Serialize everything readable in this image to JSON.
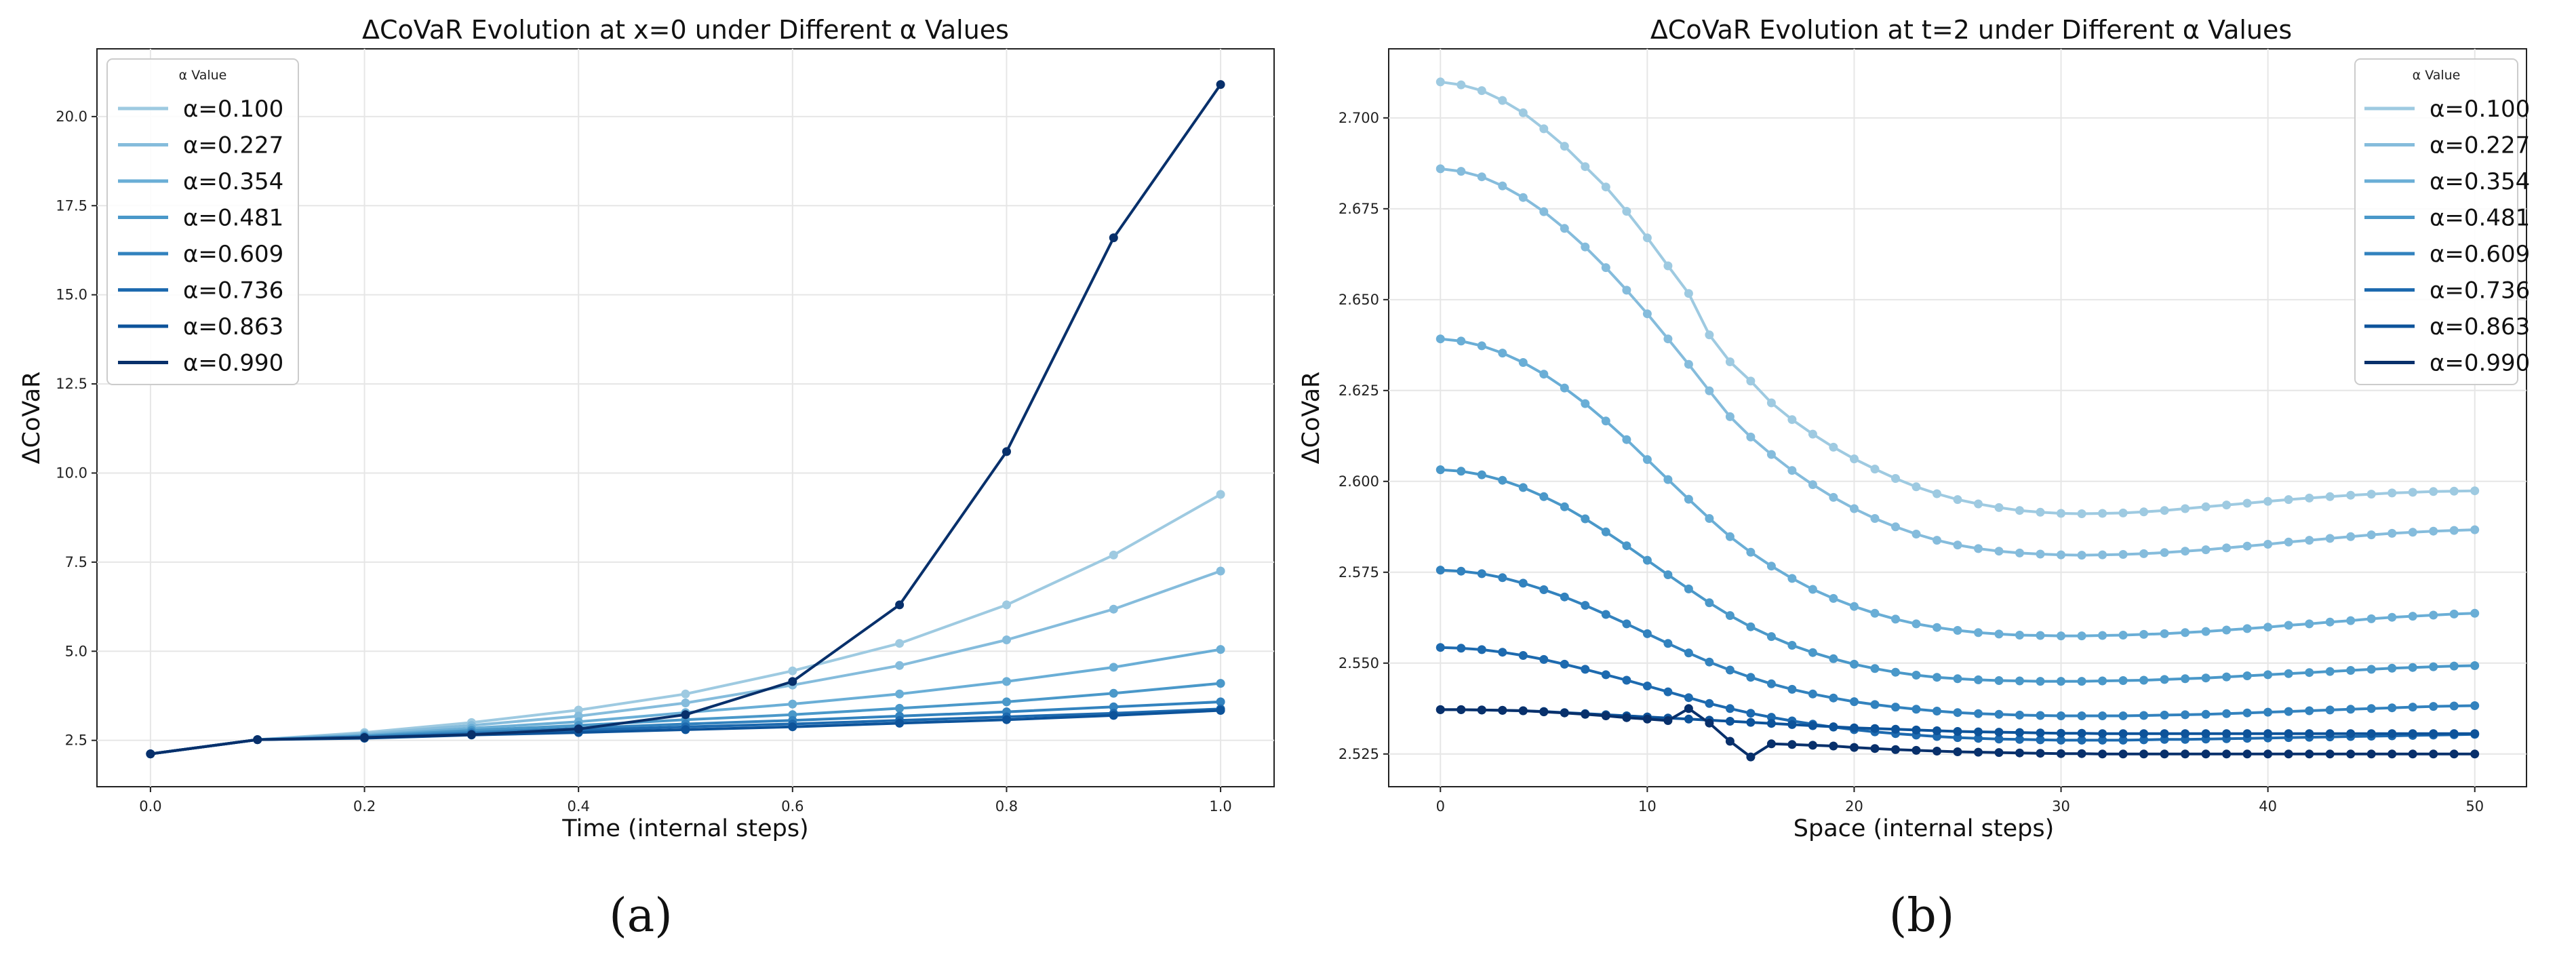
{
  "chart_data": [
    {
      "type": "line",
      "panel_label": "(a)",
      "title": "ΔCoVaR Evolution at x=0 under Different α Values",
      "xlabel": "Time (internal steps)",
      "ylabel": "ΔCoVaR",
      "xlim": [
        -0.05,
        1.05
      ],
      "ylim": [
        1.2,
        21.9
      ],
      "xticks": [
        "0.0",
        "0.2",
        "0.4",
        "0.6",
        "0.8",
        "1.0"
      ],
      "yticks": [
        "2.5",
        "5.0",
        "7.5",
        "10.0",
        "12.5",
        "15.0",
        "17.5",
        "20.0"
      ],
      "grid": true,
      "legend": {
        "title": "α Value",
        "position": "upper-left"
      },
      "x": [
        0.0,
        0.1,
        0.2,
        0.3,
        0.4,
        0.5,
        0.6,
        0.7,
        0.8,
        0.9,
        1.0
      ],
      "series": [
        {
          "name": "α=0.100",
          "color": "#9ecae1",
          "values": [
            2.12,
            2.52,
            2.72,
            3.0,
            3.35,
            3.8,
            4.45,
            5.22,
            6.3,
            7.7,
            9.4
          ]
        },
        {
          "name": "α=0.227",
          "color": "#85bcdc",
          "values": [
            2.12,
            2.52,
            2.68,
            2.92,
            3.18,
            3.55,
            4.05,
            4.6,
            5.32,
            6.18,
            7.25
          ]
        },
        {
          "name": "α=0.354",
          "color": "#6aaed6",
          "values": [
            2.12,
            2.52,
            2.64,
            2.84,
            3.02,
            3.28,
            3.52,
            3.8,
            4.15,
            4.55,
            5.05
          ]
        },
        {
          "name": "α=0.481",
          "color": "#4a98c9",
          "values": [
            2.12,
            2.52,
            2.62,
            2.78,
            2.92,
            3.08,
            3.22,
            3.4,
            3.58,
            3.82,
            4.1
          ]
        },
        {
          "name": "α=0.609",
          "color": "#3282be",
          "values": [
            2.12,
            2.52,
            2.6,
            2.72,
            2.84,
            2.96,
            3.06,
            3.18,
            3.3,
            3.44,
            3.58
          ]
        },
        {
          "name": "α=0.736",
          "color": "#1d6aaf",
          "values": [
            2.12,
            2.52,
            2.58,
            2.68,
            2.78,
            2.88,
            2.96,
            3.06,
            3.16,
            3.26,
            3.38
          ]
        },
        {
          "name": "α=0.863",
          "color": "#0d539a",
          "values": [
            2.12,
            2.52,
            2.56,
            2.65,
            2.72,
            2.8,
            2.88,
            2.98,
            3.08,
            3.2,
            3.34
          ]
        },
        {
          "name": "α=0.990",
          "color": "#08306b",
          "values": [
            2.12,
            2.52,
            2.58,
            2.66,
            2.82,
            3.22,
            4.15,
            6.3,
            10.6,
            16.6,
            20.9
          ]
        }
      ]
    },
    {
      "type": "line",
      "panel_label": "(b)",
      "title": "ΔCoVaR Evolution at t=2 under Different α Values",
      "xlabel": "Space (internal steps)",
      "ylabel": "ΔCoVaR",
      "xlim": [
        -2.5,
        52.5
      ],
      "ylim": [
        2.516,
        2.719
      ],
      "xticks": [
        "0",
        "10",
        "20",
        "30",
        "40",
        "50"
      ],
      "yticks": [
        "2.525",
        "2.550",
        "2.575",
        "2.600",
        "2.625",
        "2.650",
        "2.675",
        "2.700"
      ],
      "grid": true,
      "legend": {
        "title": "α Value",
        "position": "upper-right"
      },
      "x": [
        0,
        1,
        2,
        3,
        4,
        5,
        6,
        7,
        8,
        9,
        10,
        11,
        12,
        13,
        14,
        15,
        16,
        17,
        18,
        19,
        20,
        21,
        22,
        23,
        24,
        25,
        26,
        27,
        28,
        29,
        30,
        31,
        32,
        33,
        34,
        35,
        36,
        37,
        38,
        39,
        40,
        41,
        42,
        43,
        44,
        45,
        46,
        47,
        48,
        49,
        50
      ],
      "series": [
        {
          "name": "α=0.100",
          "color": "#9ecae1",
          "values": [
            2.7099,
            2.7091,
            2.7075,
            2.7048,
            2.7014,
            2.697,
            2.6922,
            2.6866,
            2.681,
            2.6743,
            2.667,
            2.6593,
            2.6517,
            2.6403,
            2.6329,
            2.6276,
            2.6216,
            2.617,
            2.613,
            2.6094,
            2.6062,
            2.6034,
            2.6008,
            2.5985,
            2.5966,
            2.595,
            2.5938,
            2.5928,
            2.592,
            2.5915,
            2.5912,
            2.5911,
            2.5912,
            2.5913,
            2.5916,
            2.592,
            2.5925,
            2.593,
            2.5935,
            2.594,
            2.5945,
            2.595,
            2.5954,
            2.5958,
            2.5962,
            2.5965,
            2.5968,
            2.597,
            2.5972,
            2.5973,
            2.5974
          ]
        },
        {
          "name": "α=0.227",
          "color": "#85bcdc",
          "values": [
            2.686,
            2.6853,
            2.6838,
            2.6813,
            2.6781,
            2.6742,
            2.6696,
            2.6645,
            2.6588,
            2.6526,
            2.6461,
            2.6392,
            2.6322,
            2.6249,
            2.6178,
            2.6122,
            2.6074,
            2.603,
            2.5991,
            2.5956,
            2.5925,
            2.5898,
            2.5875,
            2.5855,
            2.5838,
            2.5825,
            2.5815,
            2.5808,
            2.5803,
            2.58,
            2.5798,
            2.5797,
            2.5798,
            2.5799,
            2.5801,
            2.5804,
            2.5808,
            2.5812,
            2.5817,
            2.5822,
            2.5827,
            2.5833,
            2.5838,
            2.5843,
            2.5848,
            2.5853,
            2.5857,
            2.586,
            2.5863,
            2.5865,
            2.5867
          ]
        },
        {
          "name": "α=0.354",
          "color": "#6aaed6",
          "values": [
            2.6392,
            2.6386,
            2.6373,
            2.6353,
            2.6327,
            2.6295,
            2.6257,
            2.6214,
            2.6166,
            2.6115,
            2.606,
            2.6005,
            2.5951,
            2.5898,
            2.5848,
            2.5805,
            2.5767,
            2.5733,
            2.5703,
            2.5678,
            2.5656,
            2.5637,
            2.5621,
            2.5608,
            2.5598,
            2.559,
            2.5584,
            2.558,
            2.5577,
            2.5576,
            2.5575,
            2.5575,
            2.5576,
            2.5577,
            2.5579,
            2.5581,
            2.5584,
            2.5587,
            2.5591,
            2.5595,
            2.5599,
            2.5604,
            2.5608,
            2.5613,
            2.5617,
            2.5622,
            2.5626,
            2.5629,
            2.5632,
            2.5635,
            2.5637
          ]
        },
        {
          "name": "α=0.481",
          "color": "#4a98c9",
          "values": [
            2.6032,
            2.6028,
            2.6018,
            2.6003,
            2.5983,
            2.5958,
            2.593,
            2.5897,
            2.5861,
            2.5823,
            2.5783,
            2.5743,
            2.5704,
            2.5666,
            2.5631,
            2.56,
            2.5573,
            2.5549,
            2.5529,
            2.5512,
            2.5497,
            2.5485,
            2.5475,
            2.5467,
            2.5461,
            2.5457,
            2.5454,
            2.5452,
            2.5451,
            2.545,
            2.545,
            2.545,
            2.5451,
            2.5452,
            2.5453,
            2.5455,
            2.5457,
            2.5459,
            2.5462,
            2.5465,
            2.5468,
            2.5471,
            2.5474,
            2.5477,
            2.548,
            2.5483,
            2.5486,
            2.5488,
            2.549,
            2.5492,
            2.5493
          ]
        },
        {
          "name": "α=0.609",
          "color": "#3282be",
          "values": [
            2.5756,
            2.5753,
            2.5746,
            2.5735,
            2.572,
            2.5702,
            2.5682,
            2.5659,
            2.5634,
            2.5608,
            2.5581,
            2.5554,
            2.5528,
            2.5503,
            2.5481,
            2.5461,
            2.5443,
            2.5428,
            2.5415,
            2.5404,
            2.5394,
            2.5386,
            2.5379,
            2.5373,
            2.5368,
            2.5364,
            2.5361,
            2.5359,
            2.5357,
            2.5356,
            2.5355,
            2.5355,
            2.5355,
            2.5355,
            2.5356,
            2.5357,
            2.5358,
            2.5359,
            2.5361,
            2.5363,
            2.5365,
            2.5367,
            2.5369,
            2.5371,
            2.5373,
            2.5375,
            2.5377,
            2.5379,
            2.5381,
            2.5382,
            2.5383
          ]
        },
        {
          "name": "α=0.736",
          "color": "#1d6aaf",
          "values": [
            2.5543,
            2.5541,
            2.5537,
            2.553,
            2.5521,
            2.551,
            2.5497,
            2.5483,
            2.5468,
            2.5453,
            2.5437,
            2.5421,
            2.5405,
            2.5389,
            2.5375,
            2.5362,
            2.5351,
            2.5341,
            2.5332,
            2.5324,
            2.5317,
            2.5311,
            2.5306,
            2.5302,
            2.5298,
            2.5295,
            2.5293,
            2.5291,
            2.529,
            2.5289,
            2.5288,
            2.5288,
            2.5288,
            2.5288,
            2.5289,
            2.529,
            2.529,
            2.5291,
            2.5292,
            2.5293,
            2.5294,
            2.5295,
            2.5296,
            2.5297,
            2.5298,
            2.5299,
            2.53,
            2.5301,
            2.5302,
            2.5303,
            2.5304
          ]
        },
        {
          "name": "α=0.863",
          "color": "#0d539a",
          "values": [
            2.5372,
            2.5372,
            2.5371,
            2.537,
            2.5369,
            2.5367,
            2.5364,
            2.5361,
            2.5358,
            2.5355,
            2.5352,
            2.5349,
            2.5346,
            2.5343,
            2.534,
            2.5337,
            2.5334,
            2.5331,
            2.5328,
            2.5325,
            2.5322,
            2.532,
            2.5318,
            2.5316,
            2.5314,
            2.5312,
            2.5311,
            2.531,
            2.5309,
            2.5308,
            2.5307,
            2.5307,
            2.5306,
            2.5306,
            2.5306,
            2.5306,
            2.5306,
            2.5306,
            2.5306,
            2.5306,
            2.5306,
            2.5306,
            2.5306,
            2.5306,
            2.5306,
            2.5306,
            2.5306,
            2.5306,
            2.5306,
            2.5306,
            2.5306
          ]
        },
        {
          "name": "α=0.990",
          "color": "#08306b",
          "values": [
            2.5372,
            2.5372,
            2.5371,
            2.537,
            2.5369,
            2.5366,
            2.5363,
            2.5359,
            2.5355,
            2.535,
            2.5346,
            2.5342,
            2.5375,
            2.5335,
            2.5285,
            2.5242,
            2.5278,
            2.5276,
            2.5274,
            2.5272,
            2.5268,
            2.5265,
            2.5262,
            2.526,
            2.5258,
            2.5256,
            2.5255,
            2.5254,
            2.5253,
            2.5252,
            2.5251,
            2.5251,
            2.525,
            2.525,
            2.525,
            2.525,
            2.525,
            2.525,
            2.525,
            2.525,
            2.525,
            2.525,
            2.525,
            2.525,
            2.525,
            2.525,
            2.525,
            2.525,
            2.525,
            2.525,
            2.525
          ]
        }
      ]
    }
  ]
}
